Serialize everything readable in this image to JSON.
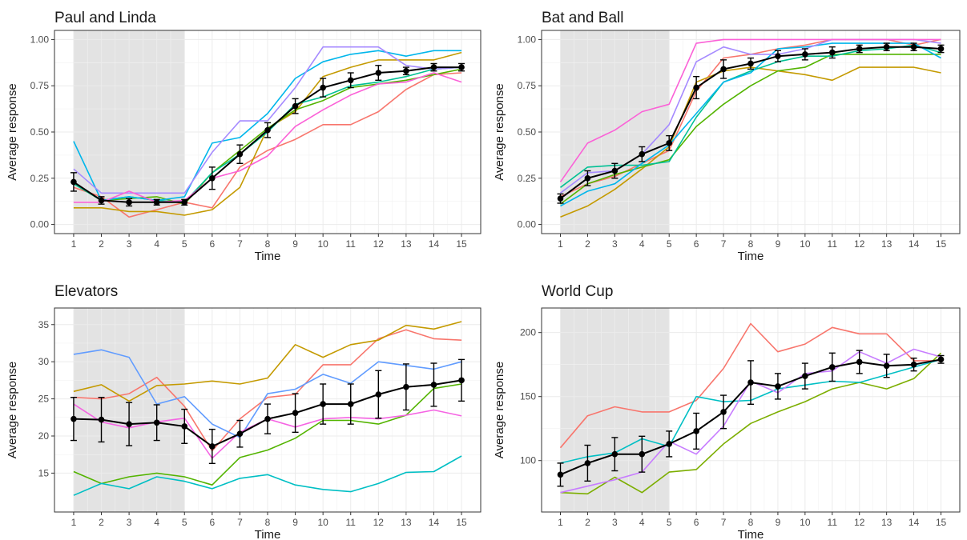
{
  "chart_data": [
    {
      "type": "line",
      "title": "Paul and Linda",
      "xlabel": "Time",
      "ylabel": "Average response",
      "xlim": [
        1,
        15
      ],
      "ylim": [
        0,
        1
      ],
      "x": [
        1,
        2,
        3,
        4,
        5,
        6,
        7,
        8,
        9,
        10,
        11,
        12,
        13,
        14,
        15
      ],
      "yticks": [
        0,
        0.25,
        0.5,
        0.75,
        1.0
      ],
      "ytick_labels": [
        "0.00",
        "0.25",
        "0.50",
        "0.75",
        "1.00"
      ],
      "shaded_x_range": [
        1,
        5
      ],
      "series": [
        {
          "color": "#F8766D",
          "values": [
            0.2,
            0.15,
            0.04,
            0.08,
            0.12,
            0.09,
            0.31,
            0.4,
            0.46,
            0.54,
            0.54,
            0.61,
            0.73,
            0.81,
            0.82
          ]
        },
        {
          "color": "#C49A00",
          "values": [
            0.09,
            0.09,
            0.07,
            0.07,
            0.05,
            0.08,
            0.2,
            0.52,
            0.61,
            0.8,
            0.85,
            0.89,
            0.89,
            0.89,
            0.93
          ]
        },
        {
          "color": "#53B400",
          "values": [
            0.22,
            0.13,
            0.14,
            0.15,
            0.11,
            0.28,
            0.4,
            0.52,
            0.62,
            0.67,
            0.74,
            0.76,
            0.78,
            0.81,
            0.84
          ]
        },
        {
          "color": "#00C094",
          "values": [
            0.22,
            0.13,
            0.15,
            0.13,
            0.12,
            0.28,
            0.38,
            0.5,
            0.65,
            0.69,
            0.75,
            0.77,
            0.8,
            0.84,
            0.85
          ]
        },
        {
          "color": "#00B6EB",
          "values": [
            0.45,
            0.13,
            0.15,
            0.13,
            0.15,
            0.44,
            0.47,
            0.6,
            0.79,
            0.88,
            0.92,
            0.94,
            0.91,
            0.94,
            0.94
          ]
        },
        {
          "color": "#A58AFF",
          "values": [
            0.3,
            0.17,
            0.17,
            0.17,
            0.17,
            0.39,
            0.56,
            0.56,
            0.74,
            0.96,
            0.96,
            0.96,
            0.86,
            0.84,
            0.85
          ]
        },
        {
          "color": "#FB61D7",
          "values": [
            0.12,
            0.12,
            0.18,
            0.12,
            0.13,
            0.25,
            0.29,
            0.37,
            0.53,
            0.62,
            0.7,
            0.76,
            0.77,
            0.82,
            0.77
          ]
        }
      ],
      "mean": {
        "values": [
          0.23,
          0.13,
          0.12,
          0.12,
          0.12,
          0.25,
          0.38,
          0.51,
          0.64,
          0.74,
          0.78,
          0.82,
          0.83,
          0.85,
          0.85
        ],
        "err": [
          0.05,
          0.02,
          0.02,
          0.015,
          0.015,
          0.06,
          0.05,
          0.04,
          0.04,
          0.05,
          0.04,
          0.04,
          0.02,
          0.02,
          0.02
        ]
      }
    },
    {
      "type": "line",
      "title": "Bat and Ball",
      "xlabel": "Time",
      "ylabel": "Average response",
      "xlim": [
        1,
        15
      ],
      "ylim": [
        0,
        1
      ],
      "x": [
        1,
        2,
        3,
        4,
        5,
        6,
        7,
        8,
        9,
        10,
        11,
        12,
        13,
        14,
        15
      ],
      "yticks": [
        0,
        0.25,
        0.5,
        0.75,
        1.0
      ],
      "ytick_labels": [
        "0.00",
        "0.25",
        "0.50",
        "0.75",
        "1.00"
      ],
      "shaded_x_range": [
        1,
        5
      ],
      "series": [
        {
          "color": "#F8766D",
          "values": [
            0.15,
            0.22,
            0.26,
            0.33,
            0.4,
            0.72,
            0.9,
            0.92,
            0.95,
            0.97,
            1.0,
            1.0,
            1.0,
            0.97,
            1.0
          ]
        },
        {
          "color": "#C49A00",
          "values": [
            0.04,
            0.1,
            0.19,
            0.3,
            0.42,
            0.77,
            0.83,
            0.85,
            0.83,
            0.81,
            0.78,
            0.85,
            0.85,
            0.85,
            0.82
          ]
        },
        {
          "color": "#53B400",
          "values": [
            0.11,
            0.22,
            0.27,
            0.31,
            0.35,
            0.53,
            0.65,
            0.75,
            0.83,
            0.85,
            0.92,
            0.92,
            0.92,
            0.92,
            0.92
          ]
        },
        {
          "color": "#00C094",
          "values": [
            0.2,
            0.31,
            0.32,
            0.32,
            0.34,
            0.58,
            0.77,
            0.83,
            0.88,
            0.91,
            0.91,
            0.94,
            0.95,
            0.97,
            0.93
          ]
        },
        {
          "color": "#00B6EB",
          "values": [
            0.1,
            0.18,
            0.22,
            0.33,
            0.43,
            0.6,
            0.77,
            0.82,
            0.95,
            0.96,
            0.98,
            0.98,
            0.98,
            0.98,
            0.9
          ]
        },
        {
          "color": "#A58AFF",
          "values": [
            0.17,
            0.28,
            0.29,
            0.38,
            0.54,
            0.88,
            0.96,
            0.92,
            0.92,
            0.95,
            1.0,
            1.0,
            1.0,
            1.0,
            0.98
          ]
        },
        {
          "color": "#FB61D7",
          "values": [
            0.23,
            0.44,
            0.51,
            0.61,
            0.65,
            0.98,
            1.0,
            1.0,
            1.0,
            1.0,
            1.0,
            1.0,
            1.0,
            1.0,
            1.0
          ]
        }
      ],
      "mean": {
        "values": [
          0.14,
          0.25,
          0.29,
          0.38,
          0.44,
          0.74,
          0.84,
          0.87,
          0.91,
          0.92,
          0.93,
          0.95,
          0.96,
          0.96,
          0.95
        ],
        "err": [
          0.025,
          0.04,
          0.04,
          0.04,
          0.04,
          0.06,
          0.05,
          0.03,
          0.03,
          0.03,
          0.03,
          0.02,
          0.02,
          0.02,
          0.02
        ]
      }
    },
    {
      "type": "line",
      "title": "Elevators",
      "xlabel": "Time",
      "ylabel": "Average response",
      "xlim": [
        1,
        15
      ],
      "ylim": [
        11,
        36
      ],
      "x": [
        1,
        2,
        3,
        4,
        5,
        6,
        7,
        8,
        9,
        10,
        11,
        12,
        13,
        14,
        15
      ],
      "yticks": [
        15,
        20,
        25,
        30,
        35
      ],
      "ytick_labels": [
        "15",
        "20",
        "25",
        "30",
        "35"
      ],
      "shaded_x_range": [
        1,
        5
      ],
      "series": [
        {
          "color": "#F8766D",
          "values": [
            25.2,
            25.0,
            25.7,
            27.9,
            24.0,
            18.0,
            22.3,
            25.2,
            25.6,
            29.6,
            29.6,
            33.1,
            34.3,
            33.1,
            32.9
          ]
        },
        {
          "color": "#C49A00",
          "values": [
            26.0,
            26.9,
            24.7,
            26.8,
            27.0,
            27.4,
            27.0,
            27.8,
            32.3,
            30.6,
            32.3,
            32.9,
            34.9,
            34.4,
            35.4
          ]
        },
        {
          "color": "#53B400",
          "values": [
            15.2,
            13.6,
            14.5,
            15.0,
            14.5,
            13.4,
            17.1,
            18.1,
            19.7,
            22.1,
            22.1,
            21.6,
            22.8,
            26.4,
            27.0
          ]
        },
        {
          "color": "#00BFC4",
          "values": [
            12.0,
            13.6,
            12.9,
            14.5,
            13.9,
            12.9,
            14.3,
            14.8,
            13.4,
            12.8,
            12.5,
            13.6,
            15.1,
            15.2,
            17.3
          ]
        },
        {
          "color": "#619CFF",
          "values": [
            31.0,
            31.6,
            30.6,
            24.3,
            25.3,
            21.6,
            19.8,
            25.7,
            26.3,
            28.3,
            27.1,
            30.0,
            29.5,
            29.0,
            30.0
          ]
        },
        {
          "color": "#F564E3",
          "values": [
            24.3,
            21.9,
            21.1,
            21.9,
            22.4,
            17.0,
            20.5,
            22.3,
            21.2,
            22.3,
            22.5,
            22.3,
            22.8,
            23.5,
            22.7
          ]
        }
      ],
      "mean": {
        "values": [
          22.3,
          22.2,
          21.6,
          21.8,
          21.3,
          18.6,
          20.3,
          22.3,
          23.1,
          24.3,
          24.3,
          25.6,
          26.6,
          26.9,
          27.5
        ],
        "err": [
          2.9,
          3.0,
          2.9,
          2.4,
          2.3,
          2.3,
          1.8,
          2.0,
          2.6,
          2.7,
          2.7,
          3.2,
          3.1,
          2.9,
          2.8
        ]
      }
    },
    {
      "type": "line",
      "title": "World Cup",
      "xlabel": "Time",
      "ylabel": "Average response",
      "xlim": [
        1,
        15
      ],
      "ylim": [
        67,
        212
      ],
      "x": [
        1,
        2,
        3,
        4,
        5,
        6,
        7,
        8,
        9,
        10,
        11,
        12,
        13,
        14,
        15
      ],
      "yticks": [
        100,
        150,
        200
      ],
      "ytick_labels": [
        "100",
        "150",
        "200"
      ],
      "shaded_x_range": [
        1,
        5
      ],
      "series": [
        {
          "color": "#F8766D",
          "values": [
            110,
            135,
            142,
            138,
            138,
            147,
            172,
            207,
            185,
            191,
            204,
            199,
            199,
            178,
            178
          ]
        },
        {
          "color": "#7CAE00",
          "values": [
            75,
            74,
            87,
            75,
            91,
            93,
            113,
            129,
            138,
            146,
            156,
            161,
            156,
            164,
            184
          ]
        },
        {
          "color": "#00BFC4",
          "values": [
            98,
            103,
            106,
            117,
            111,
            150,
            146,
            147,
            156,
            159,
            162,
            161,
            167,
            173,
            179
          ]
        },
        {
          "color": "#C77CFF",
          "values": [
            75,
            80,
            85,
            91,
            115,
            105,
            127,
            162,
            153,
            168,
            170,
            185,
            176,
            187,
            181
          ]
        }
      ],
      "mean": {
        "values": [
          89,
          98,
          105,
          105,
          113,
          123,
          138,
          161,
          158,
          166,
          173,
          177,
          174,
          175,
          179
        ],
        "err": [
          9,
          14,
          13,
          14,
          10,
          14,
          13,
          17,
          10,
          10,
          11,
          9,
          9,
          5,
          3
        ]
      }
    }
  ]
}
